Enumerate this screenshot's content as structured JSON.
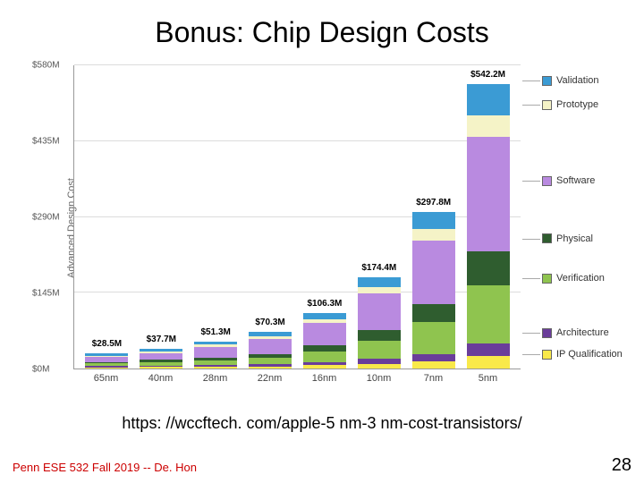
{
  "title": "Bonus: Chip Design Costs",
  "source_url": "https: //wccftech. com/apple-5 nm-3 nm-cost-transistors/",
  "footer_left": "Penn ESE 532 Fall 2019 -- De. Hon",
  "page_number": "28",
  "chart": {
    "type": "stacked-bar",
    "y_axis_label": "Advanced Design Cost",
    "ylim": [
      0,
      580
    ],
    "y_ticks": [
      "$0M",
      "$145M",
      "$290M",
      "$435M",
      "$580M"
    ],
    "y_tick_positions": [
      0,
      145,
      290,
      435,
      580
    ],
    "categories": [
      "65nm",
      "40nm",
      "28nm",
      "22nm",
      "16nm",
      "10nm",
      "7nm",
      "5nm"
    ],
    "bar_labels": [
      "$28.5M",
      "$37.7M",
      "$51.3M",
      "$70.3M",
      "$106.3M",
      "$174.4M",
      "$297.8M",
      "$542.2M"
    ],
    "bar_totals": [
      28.5,
      37.7,
      51.3,
      70.3,
      106.3,
      174.4,
      297.8,
      542.2
    ],
    "segments": [
      "IP Qualification",
      "Architecture",
      "Verification",
      "Physical",
      "Software",
      "Prototype",
      "Validation"
    ],
    "segment_colors": {
      "IP Qualification": "#f9e94a",
      "Architecture": "#6a3d9a",
      "Verification": "#8fc44f",
      "Physical": "#2f5d2f",
      "Software": "#b98ae0",
      "Prototype": "#f5f3c7",
      "Validation": "#3b9bd4"
    },
    "data": [
      {
        "IP Qualification": 2.5,
        "Architecture": 2,
        "Verification": 5,
        "Physical": 3,
        "Software": 10,
        "Prototype": 2,
        "Validation": 4
      },
      {
        "IP Qualification": 3,
        "Architecture": 2.5,
        "Verification": 7,
        "Physical": 4,
        "Software": 13.2,
        "Prototype": 3,
        "Validation": 5
      },
      {
        "IP Qualification": 3.5,
        "Architecture": 3,
        "Verification": 9,
        "Physical": 5,
        "Software": 20.8,
        "Prototype": 4,
        "Validation": 6
      },
      {
        "IP Qualification": 4,
        "Architecture": 4,
        "Verification": 12,
        "Physical": 7,
        "Software": 29.3,
        "Prototype": 6,
        "Validation": 8
      },
      {
        "IP Qualification": 6,
        "Architecture": 6,
        "Verification": 20,
        "Physical": 12,
        "Software": 42.3,
        "Prototype": 8,
        "Validation": 12
      },
      {
        "IP Qualification": 9,
        "Architecture": 9,
        "Verification": 35,
        "Physical": 20,
        "Software": 70.4,
        "Prototype": 12,
        "Validation": 19
      },
      {
        "IP Qualification": 14,
        "Architecture": 14,
        "Verification": 60,
        "Physical": 35,
        "Software": 120.8,
        "Prototype": 22,
        "Validation": 32
      },
      {
        "IP Qualification": 24,
        "Architecture": 24,
        "Verification": 110,
        "Physical": 65,
        "Software": 218.2,
        "Prototype": 41,
        "Validation": 60
      }
    ],
    "legend_positions_pct": {
      "Validation": 5,
      "Prototype": 13,
      "Software": 38,
      "Physical": 57,
      "Verification": 70,
      "Architecture": 88,
      "IP Qualification": 95
    },
    "grid_color": "#dcdcdc",
    "background_color": "#ffffff",
    "label_fontsize": 11
  }
}
